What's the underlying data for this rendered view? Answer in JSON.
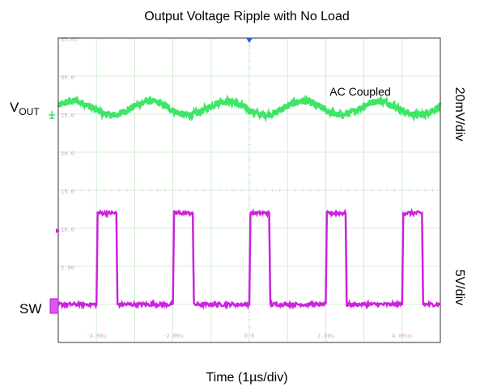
{
  "chart_data": {
    "type": "line",
    "title": "Output Voltage Ripple with No Load",
    "xlabel": "Time (1µs/div)",
    "annotation": "AC Coupled",
    "right_label_top": "20mV/div",
    "right_label_bottom": "5V/div",
    "channel_labels": {
      "vout_main": "V",
      "vout_sub": "OUT",
      "sw": "SW"
    },
    "scope_y_ticks": [
      "35.0V",
      "30.0",
      "25.0",
      "20.0",
      "15.0",
      "10.0",
      "5.00",
      "0.0"
    ],
    "scope_y_values": [
      35,
      30,
      25,
      20,
      15,
      10,
      5,
      0
    ],
    "scope_x_ticks": [
      "-4.00u",
      "-2.00u",
      "0.0",
      "2.00u",
      "4.00us"
    ],
    "scope_x_values": [
      -4,
      -2,
      0,
      2,
      4
    ],
    "xlim": [
      -5,
      5
    ],
    "ylim": [
      -5,
      35
    ],
    "grid": true,
    "series": [
      {
        "name": "VOUT",
        "color": "#3ee566",
        "kind": "sine",
        "center": 25.8,
        "amplitude": 0.9,
        "period_us": 2.0,
        "phase_zero_us": -3.6,
        "noise": 0.45
      },
      {
        "name": "SW",
        "color": "#cc22dd",
        "kind": "pulse",
        "low": 0.0,
        "high": 12.0,
        "pulse_starts_us": [
          -4.0,
          -2.0,
          0.0,
          2.0,
          4.0
        ],
        "pulse_width_us": 0.52
      }
    ],
    "colors": {
      "grid": "#c8e8c8",
      "tick_text": "#e0a0e8",
      "trigger_marker": "#2266cc",
      "frame": "#333333"
    }
  }
}
